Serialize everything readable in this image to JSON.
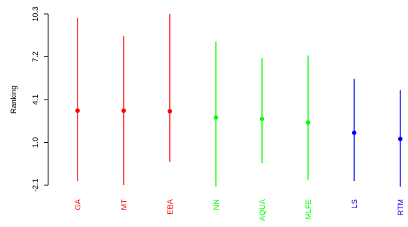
{
  "chart_data": {
    "type": "scatter",
    "title": "",
    "xlabel": "",
    "ylabel": "Ranking",
    "ylim": [
      -2.1,
      10.3
    ],
    "y_ticks": [
      "-2.1",
      "1.0",
      "4.1",
      "7.2",
      "10.3"
    ],
    "y_tick_values": [
      -2.1,
      1.0,
      4.1,
      7.2,
      10.3
    ],
    "categories": [
      "GA",
      "MT",
      "EBA",
      "NN",
      "AQUA",
      "MLFE",
      "LS",
      "RTM"
    ],
    "category_colors": [
      "#ff0000",
      "#ff0000",
      "#ff0000",
      "#00ff00",
      "#00ff00",
      "#00ff00",
      "#0000ff",
      "#0000ff"
    ],
    "points": [
      {
        "category": "GA",
        "mean": 3.3,
        "low": -1.8,
        "high": 10.0
      },
      {
        "category": "MT",
        "mean": 3.3,
        "low": -2.1,
        "high": 8.7
      },
      {
        "category": "EBA",
        "mean": 3.25,
        "low": -0.4,
        "high": 10.3
      },
      {
        "category": "NN",
        "mean": 2.8,
        "low": -2.2,
        "high": 8.3
      },
      {
        "category": "AQUA",
        "mean": 2.7,
        "low": -0.5,
        "high": 7.1
      },
      {
        "category": "MLFE",
        "mean": 2.45,
        "low": -1.7,
        "high": 7.3
      },
      {
        "category": "LS",
        "mean": 1.7,
        "low": -1.8,
        "high": 5.6
      },
      {
        "category": "RTM",
        "mean": 1.25,
        "low": -2.2,
        "high": 4.8
      }
    ],
    "grid": false,
    "legend": "none"
  }
}
